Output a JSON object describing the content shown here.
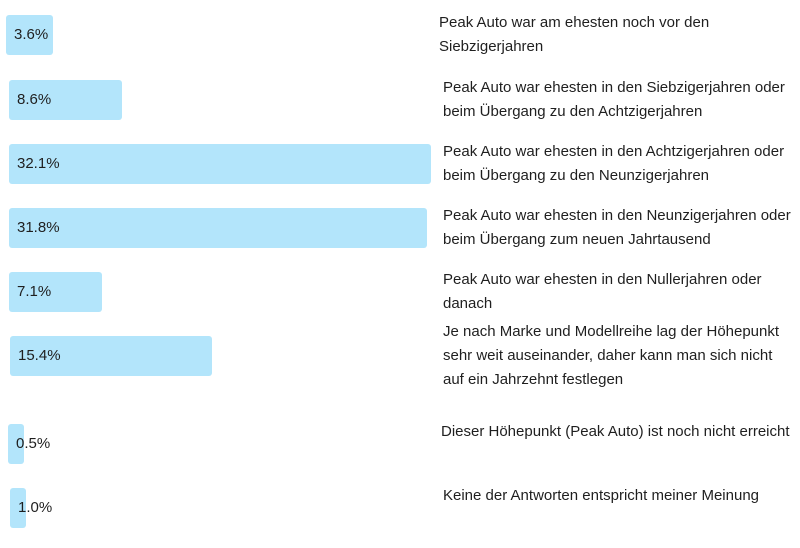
{
  "chart_data": {
    "type": "bar",
    "orientation": "horizontal",
    "unit": "%",
    "categories": [
      "Peak Auto war am ehesten noch vor den Siebzigerjahren",
      "Peak Auto war ehesten in den Siebzigerjahren oder beim Übergang zu den Achtzigerjahren",
      "Peak Auto war ehesten in den Achtzigerjahren oder beim Übergang zu den Neunzigerjahren",
      "Peak Auto war ehesten in den Neunzigerjahren oder beim Übergang zum neuen Jahrtausend",
      "Peak Auto war ehesten in den Nullerjahren oder danach",
      "Je nach Marke und Modellreihe lag der Höhepunkt sehr weit auseinander, daher kann man sich nicht auf ein Jahrzehnt festlegen",
      "Dieser Höhepunkt (Peak Auto) ist noch nicht erreicht",
      "Keine der Antworten entspricht meiner Meinung"
    ],
    "values": [
      3.6,
      8.6,
      32.1,
      31.8,
      7.1,
      15.4,
      0.5,
      1.0
    ],
    "value_labels": [
      "3.6%",
      "8.6%",
      "32.1%",
      "31.8%",
      "7.1%",
      "15.4%",
      "0.5%",
      "1.0%"
    ],
    "bar_color": "#b3e5fb",
    "xlim": [
      0,
      32.1
    ],
    "grid": false,
    "legend": "none"
  }
}
